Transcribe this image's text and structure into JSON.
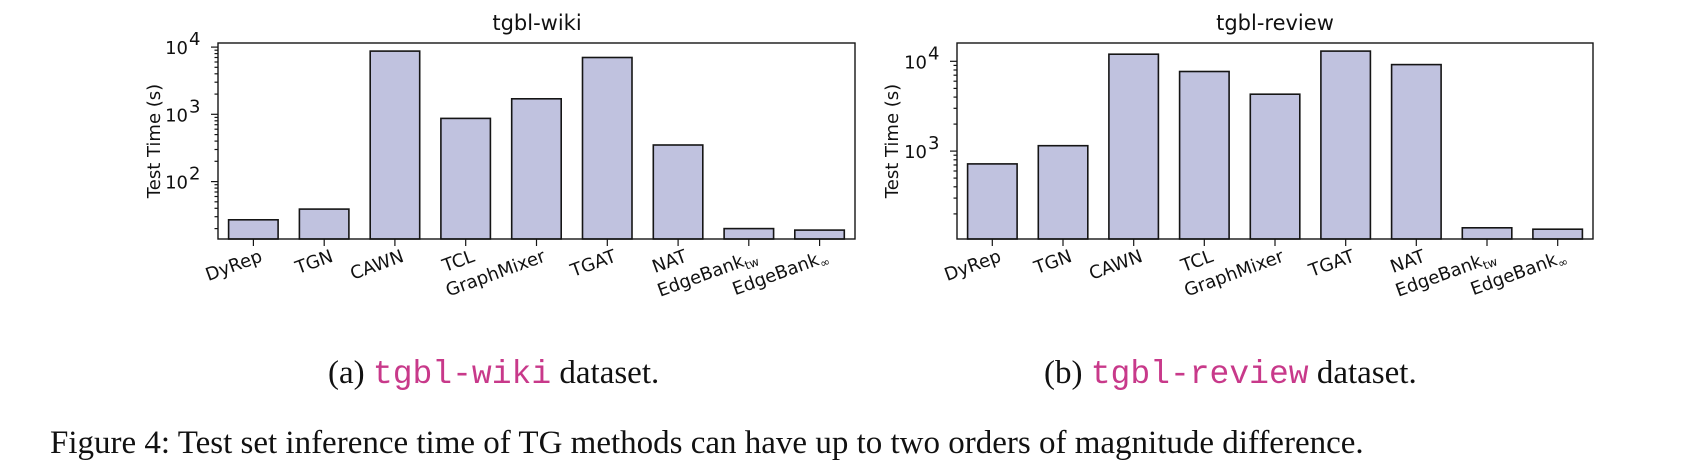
{
  "chart_data": [
    {
      "type": "bar",
      "title": "tgbl-wiki",
      "ylabel": "Test Time (s)",
      "yscale": "log",
      "ylim": [
        14,
        11500
      ],
      "yticks": [
        {
          "value": 100,
          "base": "10",
          "exp": "2"
        },
        {
          "value": 1000,
          "base": "10",
          "exp": "3"
        },
        {
          "value": 10000,
          "base": "10",
          "exp": "4"
        }
      ],
      "categories": [
        {
          "main": "DyRep",
          "sub": ""
        },
        {
          "main": "TGN",
          "sub": ""
        },
        {
          "main": "CAWN",
          "sub": ""
        },
        {
          "main": "TCL",
          "sub": ""
        },
        {
          "main": "GraphMixer",
          "sub": ""
        },
        {
          "main": "TGAT",
          "sub": ""
        },
        {
          "main": "NAT",
          "sub": ""
        },
        {
          "main": "EdgeBank",
          "sub": "tw"
        },
        {
          "main": "EdgeBank",
          "sub": "∞"
        }
      ],
      "values": [
        27,
        39,
        8700,
        870,
        1700,
        7000,
        350,
        20,
        19
      ],
      "bar_color": "#c0c2df",
      "grid": false
    },
    {
      "type": "bar",
      "title": "tgbl-review",
      "ylabel": "Test Time (s)",
      "yscale": "log",
      "ylim": [
        105,
        16000
      ],
      "yticks": [
        {
          "value": 1000,
          "base": "10",
          "exp": "3"
        },
        {
          "value": 10000,
          "base": "10",
          "exp": "4"
        }
      ],
      "categories": [
        {
          "main": "DyRep",
          "sub": ""
        },
        {
          "main": "TGN",
          "sub": ""
        },
        {
          "main": "CAWN",
          "sub": ""
        },
        {
          "main": "TCL",
          "sub": ""
        },
        {
          "main": "GraphMixer",
          "sub": ""
        },
        {
          "main": "TGAT",
          "sub": ""
        },
        {
          "main": "NAT",
          "sub": ""
        },
        {
          "main": "EdgeBank",
          "sub": "tw"
        },
        {
          "main": "EdgeBank",
          "sub": "∞"
        }
      ],
      "values": [
        720,
        1150,
        12000,
        7700,
        4300,
        13000,
        9200,
        140,
        135
      ],
      "bar_color": "#c0c2df",
      "grid": false
    }
  ],
  "captions": {
    "a": {
      "prefix": "(a) ",
      "code": "tgbl-wiki",
      "suffix": " dataset."
    },
    "b": {
      "prefix": "(b) ",
      "code": "tgbl-review",
      "suffix": " dataset."
    },
    "figure": "Figure 4: Test set inference time of TG methods can have up to two orders of magnitude difference."
  },
  "colors": {
    "caption_code": "#c8398a",
    "bar_fill": "#c0c2df"
  }
}
